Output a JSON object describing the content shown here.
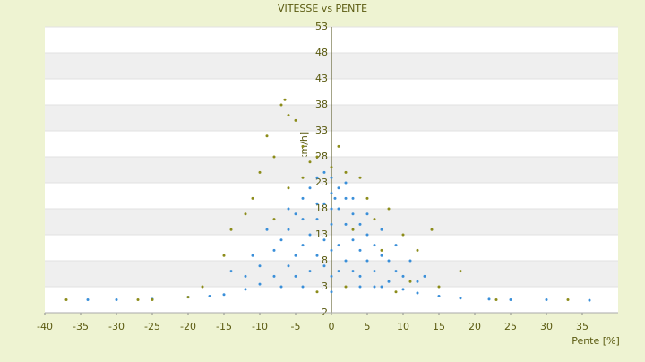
{
  "chart_data": {
    "type": "scatter",
    "title": "VITESSE vs PENTE",
    "x_label": "Pente [%]",
    "y_label": "[km/h]",
    "xlim": [
      -40,
      40
    ],
    "xticks": [
      -40,
      -35,
      -30,
      -25,
      -20,
      -15,
      -10,
      -5,
      0,
      5,
      10,
      15,
      20,
      25,
      30,
      35
    ],
    "ylim": [
      -2,
      53
    ],
    "yticks": [
      -2,
      3,
      8,
      13,
      18,
      23,
      28,
      33,
      38,
      43,
      48,
      53
    ],
    "grid": true,
    "series": [
      {
        "color": "#3a8fd9",
        "x": [
          -34,
          -30,
          -25,
          -20,
          -17,
          -15,
          -12,
          -10,
          -8,
          -6,
          -5,
          -4,
          -3,
          -2,
          -1,
          0,
          0.5,
          1,
          2,
          3,
          4,
          5,
          6,
          8,
          10,
          12,
          15,
          18,
          22,
          25,
          30,
          36,
          -8,
          -6,
          -5,
          -4,
          -3,
          -2,
          -1,
          0,
          1,
          2,
          3,
          4,
          5,
          6,
          7,
          8,
          9,
          10,
          12,
          -10,
          -12,
          -7,
          -3,
          -2,
          -1,
          0,
          1,
          2,
          3,
          4,
          6,
          -9,
          -6,
          -4,
          -2,
          0,
          2,
          3,
          5,
          7,
          9,
          11,
          13,
          -14,
          -11,
          -5,
          -1,
          1,
          0,
          0,
          0,
          4,
          7,
          -4,
          -7
        ],
        "values": [
          0.5,
          0.5,
          0.6,
          1,
          1.2,
          1.5,
          2.5,
          3.5,
          5,
          7,
          9,
          11,
          13,
          16,
          19,
          21,
          20,
          18,
          15,
          12,
          10,
          8,
          6,
          4,
          2.5,
          1.8,
          1.2,
          0.8,
          0.6,
          0.5,
          0.5,
          0.4,
          10,
          14,
          17,
          20,
          22,
          24,
          25,
          24,
          22,
          20,
          17,
          15,
          13,
          11,
          9,
          8,
          6,
          5,
          4,
          7,
          5,
          12,
          6,
          9,
          12,
          15,
          11,
          8,
          6,
          5,
          3,
          14,
          18,
          16,
          19,
          18,
          23,
          20,
          17,
          14,
          11,
          8,
          5,
          6,
          9,
          5,
          7,
          6,
          2,
          5,
          10,
          3,
          3,
          3,
          3
        ]
      },
      {
        "color": "#8c8c1a",
        "x": [
          -7,
          -6.5,
          -6,
          -5,
          -9,
          -8,
          -4,
          -10,
          -3,
          1,
          2,
          4,
          -12,
          -14,
          -11,
          8,
          10,
          12,
          14,
          18,
          15,
          -20,
          -25,
          -37,
          -27,
          33,
          23,
          5,
          6,
          -6,
          -2,
          0,
          3,
          -15,
          -18,
          11,
          9,
          -2,
          2,
          7,
          -8,
          -4
        ],
        "values": [
          38,
          39,
          36,
          35,
          32,
          28,
          30,
          25,
          27,
          30,
          25,
          24,
          17,
          14,
          20,
          18,
          13,
          10,
          14,
          6,
          3,
          1,
          0.5,
          0.5,
          0.5,
          0.5,
          0.5,
          20,
          16,
          22,
          28,
          26,
          14,
          9,
          3,
          4,
          2,
          2,
          3,
          10,
          16,
          24
        ]
      }
    ]
  }
}
